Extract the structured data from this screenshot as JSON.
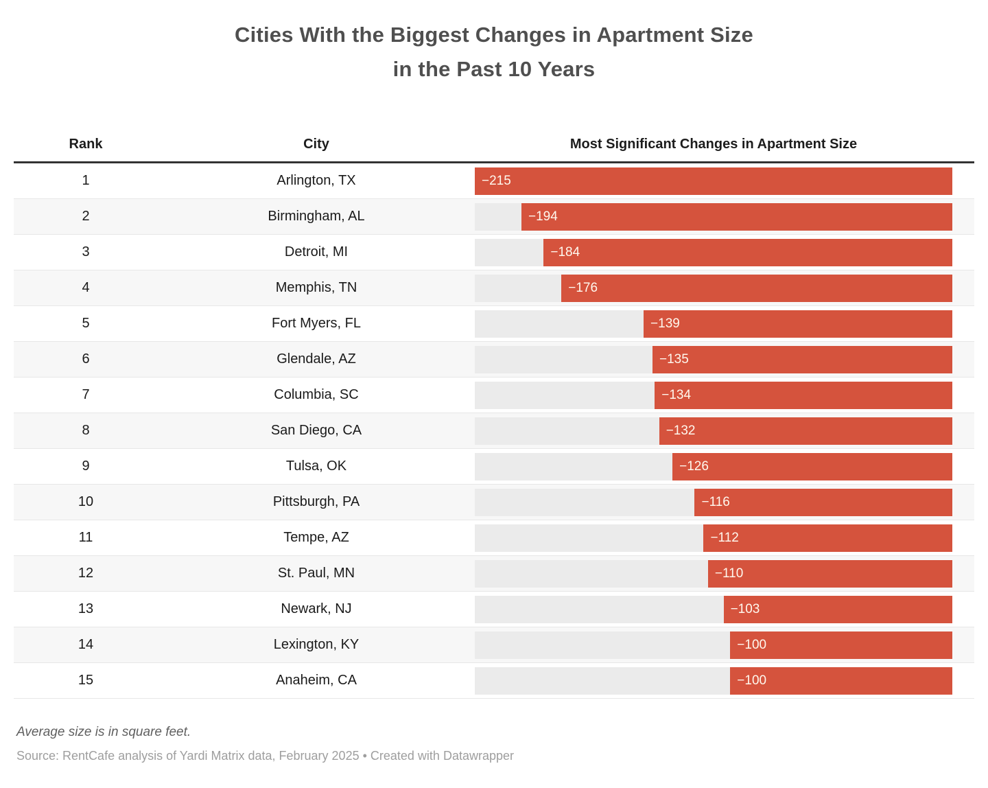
{
  "title": {
    "line1": "Cities With the Biggest Changes in Apartment Size",
    "line2": "in the Past 10 Years"
  },
  "table": {
    "columns": [
      "Rank",
      "City",
      "Most Significant Changes in Apartment Size"
    ],
    "rows": [
      {
        "rank": "1",
        "city": "Arlington, TX",
        "value": -215,
        "label": "−215"
      },
      {
        "rank": "2",
        "city": "Birmingham, AL",
        "value": -194,
        "label": "−194"
      },
      {
        "rank": "3",
        "city": "Detroit, MI",
        "value": -184,
        "label": "−184"
      },
      {
        "rank": "4",
        "city": "Memphis, TN",
        "value": -176,
        "label": "−176"
      },
      {
        "rank": "5",
        "city": "Fort Myers, FL",
        "value": -139,
        "label": "−139"
      },
      {
        "rank": "6",
        "city": "Glendale, AZ",
        "value": -135,
        "label": "−135"
      },
      {
        "rank": "7",
        "city": "Columbia, SC",
        "value": -134,
        "label": "−134"
      },
      {
        "rank": "8",
        "city": "San Diego, CA",
        "value": -132,
        "label": "−132"
      },
      {
        "rank": "9",
        "city": "Tulsa, OK",
        "value": -126,
        "label": "−126"
      },
      {
        "rank": "10",
        "city": "Pittsburgh, PA",
        "value": -116,
        "label": "−116"
      },
      {
        "rank": "11",
        "city": "Tempe, AZ",
        "value": -112,
        "label": "−112"
      },
      {
        "rank": "12",
        "city": "St. Paul, MN",
        "value": -110,
        "label": "−110"
      },
      {
        "rank": "13",
        "city": "Newark, NJ",
        "value": -103,
        "label": "−103"
      },
      {
        "rank": "14",
        "city": "Lexington, KY",
        "value": -100,
        "label": "−100"
      },
      {
        "rank": "15",
        "city": "Anaheim, CA",
        "value": -100,
        "label": "−100"
      }
    ]
  },
  "chart_data": {
    "type": "bar",
    "orientation": "horizontal",
    "title": "Cities With the Biggest Changes in Apartment Size in the Past 10 Years",
    "categories": [
      "Arlington, TX",
      "Birmingham, AL",
      "Detroit, MI",
      "Memphis, TN",
      "Fort Myers, FL",
      "Glendale, AZ",
      "Columbia, SC",
      "San Diego, CA",
      "Tulsa, OK",
      "Pittsburgh, PA",
      "Tempe, AZ",
      "St. Paul, MN",
      "Newark, NJ",
      "Lexington, KY",
      "Anaheim, CA"
    ],
    "ranks": [
      1,
      2,
      3,
      4,
      5,
      6,
      7,
      8,
      9,
      10,
      11,
      12,
      13,
      14,
      15
    ],
    "values": [
      -215,
      -194,
      -184,
      -176,
      -139,
      -135,
      -134,
      -132,
      -126,
      -116,
      -112,
      -110,
      -103,
      -100,
      -100
    ],
    "xlabel": "Most Significant Changes in Apartment Size",
    "ylabel": "City",
    "xlim": [
      -215,
      0
    ],
    "grid": false,
    "legend": false,
    "bar_color": "#d5533d",
    "track_color": "#ebebeb",
    "units": "square feet",
    "note": "Average size is in square feet."
  },
  "footer": {
    "note": "Average size is in square feet.",
    "source": "Source: RentCafe analysis of Yardi Matrix data, February 2025 • Created with Datawrapper"
  }
}
